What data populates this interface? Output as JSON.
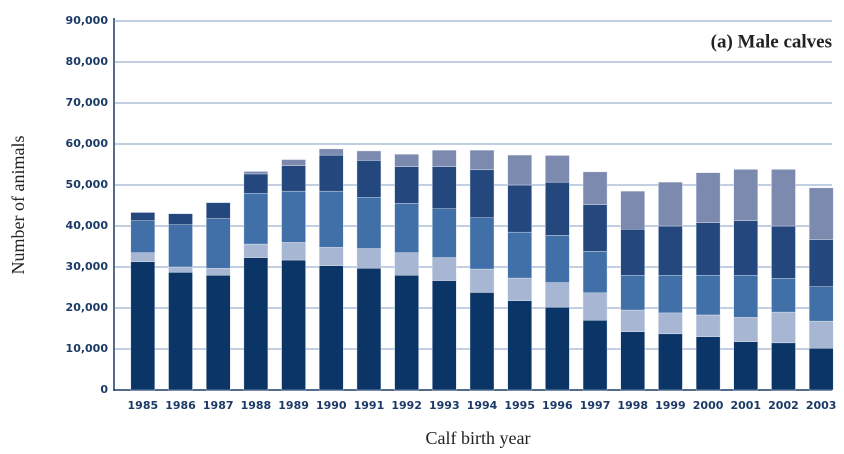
{
  "chart_data": {
    "type": "stacked_bar",
    "annotation": "(a) Male calves",
    "xlabel": "Calf birth year",
    "ylabel": "Number of animals",
    "categories": [
      "1985",
      "1986",
      "1987",
      "1988",
      "1989",
      "1990",
      "1991",
      "1992",
      "1993",
      "1994",
      "1995",
      "1996",
      "1997",
      "1998",
      "1999",
      "2000",
      "2001",
      "2002",
      "2003"
    ],
    "series": [
      {
        "color": "#0b3567",
        "values": [
          31300,
          28700,
          28000,
          32300,
          31700,
          30300,
          29700,
          28000,
          26700,
          23800,
          21800,
          20200,
          17000,
          14200,
          13700,
          13000,
          11800,
          11500,
          10200
        ]
      },
      {
        "color": "#a7b6d3",
        "values": [
          2200,
          1300,
          1700,
          3300,
          4300,
          4500,
          4800,
          5500,
          5600,
          5700,
          5500,
          6000,
          6700,
          5300,
          5100,
          5300,
          5900,
          7500,
          6600
        ]
      },
      {
        "color": "#4170a8",
        "values": [
          7800,
          10300,
          12100,
          12400,
          12500,
          13700,
          12500,
          12000,
          11900,
          12500,
          11200,
          11500,
          10100,
          8500,
          9200,
          9700,
          10300,
          8200,
          8400
        ]
      },
      {
        "color": "#24487e",
        "values": [
          2000,
          2700,
          3900,
          4700,
          6200,
          8800,
          9000,
          9000,
          10300,
          11700,
          11500,
          13000,
          11400,
          11200,
          12000,
          12800,
          13300,
          12800,
          11500
        ]
      },
      {
        "color": "#7c8ab0",
        "values": [
          0,
          0,
          0,
          600,
          1500,
          1500,
          2300,
          3000,
          4000,
          4800,
          7300,
          6500,
          8000,
          9300,
          10700,
          12200,
          12500,
          13800,
          12600
        ]
      }
    ],
    "ylim": [
      0,
      90000
    ],
    "yticks": [
      0,
      {
        "value": 10000,
        "label": "10,000"
      },
      {
        "value": 20000,
        "label": "20,000"
      },
      {
        "value": 30000,
        "label": "30,000"
      },
      {
        "value": 40000,
        "label": "40,000"
      },
      {
        "value": 50000,
        "label": "50,000"
      },
      {
        "value": 60000,
        "label": "60,000"
      },
      {
        "value": 70000,
        "label": "70,000"
      },
      {
        "value": 80000,
        "label": "80,000"
      },
      {
        "value": 90000,
        "label": "90,000"
      }
    ],
    "grid": true
  }
}
